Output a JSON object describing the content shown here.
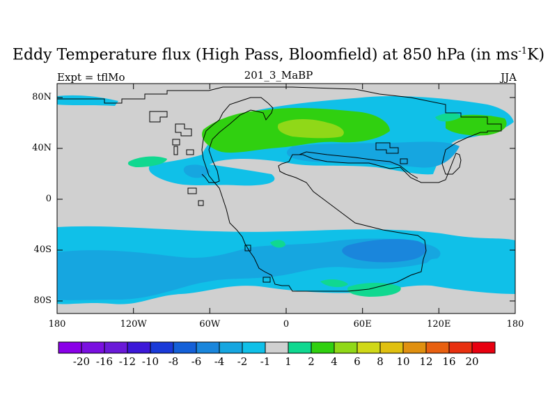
{
  "title": {
    "main": "Eddy Temperature flux (High Pass, Bloomfield) at 850 hPa (in ms",
    "superscript": "-1",
    "tail": "K)"
  },
  "left_string": "Expt = tflMo",
  "center_string": "201_3_MaBP",
  "right_string": "JJA",
  "lat_labels": [
    "80N",
    "40N",
    "0",
    "40S",
    "80S"
  ],
  "lon_labels": [
    "180",
    "120W",
    "60W",
    "0",
    "60E",
    "120E",
    "180"
  ],
  "colorbar": {
    "labels": [
      "-20",
      "-16",
      "-12",
      "-10",
      "-8",
      "-6",
      "-4",
      "-2",
      "-1",
      "1",
      "2",
      "4",
      "6",
      "8",
      "10",
      "12",
      "16",
      "20"
    ],
    "colors": [
      "#8a00e8",
      "#7a10e0",
      "#6a1ad8",
      "#3c18d8",
      "#1a3ad8",
      "#1460d8",
      "#1a86dc",
      "#16a6e0",
      "#10c0e8",
      "#d0d0d0",
      "#10d890",
      "#30d010",
      "#90d818",
      "#d0d818",
      "#e0c010",
      "#e09010",
      "#e86010",
      "#e83010",
      "#e80010"
    ]
  },
  "colors": {
    "land_mask": "#d0d0d0",
    "neg_light": "#10c0e8",
    "neg_mid": "#16a6e0",
    "neg_dark": "#1a86dc",
    "pos_light": "#10d890",
    "pos_mid": "#30d010",
    "pos_strong": "#90d818"
  }
}
